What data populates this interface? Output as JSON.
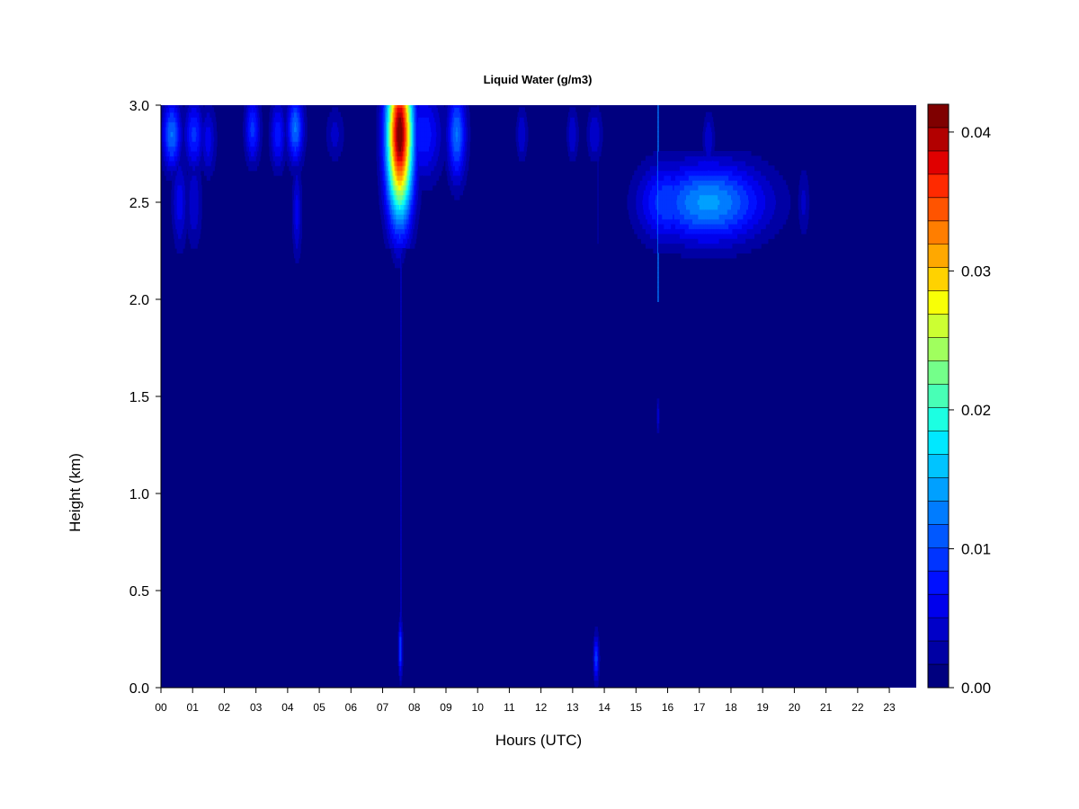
{
  "chart_data": {
    "type": "heatmap",
    "title": "Liquid Water (g/m3)",
    "xlabel": "Hours (UTC)",
    "ylabel": "Height (km)",
    "xlim": [
      0,
      23.85
    ],
    "ylim": [
      0,
      3.0
    ],
    "x_ticks": [
      "00",
      "01",
      "02",
      "03",
      "04",
      "05",
      "06",
      "07",
      "08",
      "09",
      "10",
      "11",
      "12",
      "13",
      "14",
      "15",
      "16",
      "17",
      "18",
      "19",
      "20",
      "21",
      "22",
      "23"
    ],
    "y_ticks": [
      "0.0",
      "0.5",
      "1.0",
      "1.5",
      "2.0",
      "2.5",
      "3.0"
    ],
    "colorbar": {
      "range": [
        0,
        0.042
      ],
      "tick_labels": [
        "0.00",
        "0.01",
        "0.02",
        "0.03",
        "0.04"
      ],
      "tick_values": [
        0,
        0.01,
        0.02,
        0.03,
        0.04
      ],
      "colors": [
        "#00007f",
        "#0000a4",
        "#0000c8",
        "#0000ec",
        "#0010ff",
        "#0034ff",
        "#0058ff",
        "#007cff",
        "#00a0ff",
        "#00c4ff",
        "#00e8ff",
        "#1cffe2",
        "#48ffb6",
        "#74ff8a",
        "#a0ff5e",
        "#ccff32",
        "#f8ff06",
        "#ffd200",
        "#ffa800",
        "#ff7e00",
        "#ff5400",
        "#ff2a00",
        "#e00000",
        "#b20000",
        "#7f0000"
      ]
    },
    "background_value": 0.0,
    "cloud_features": [
      {
        "x": 0.35,
        "y": 2.85,
        "width_h": 0.25,
        "depth_km": 0.15,
        "peak": 0.012
      },
      {
        "x": 0.6,
        "y": 2.5,
        "width_h": 0.2,
        "depth_km": 0.2,
        "peak": 0.006
      },
      {
        "x": 1.05,
        "y": 2.85,
        "width_h": 0.25,
        "depth_km": 0.15,
        "peak": 0.009
      },
      {
        "x": 1.5,
        "y": 2.82,
        "width_h": 0.2,
        "depth_km": 0.15,
        "peak": 0.006
      },
      {
        "x": 1.05,
        "y": 2.5,
        "width_h": 0.2,
        "depth_km": 0.2,
        "peak": 0.005
      },
      {
        "x": 2.9,
        "y": 2.88,
        "width_h": 0.2,
        "depth_km": 0.15,
        "peak": 0.009
      },
      {
        "x": 3.7,
        "y": 2.85,
        "width_h": 0.2,
        "depth_km": 0.15,
        "peak": 0.008
      },
      {
        "x": 4.25,
        "y": 2.88,
        "width_h": 0.22,
        "depth_km": 0.15,
        "peak": 0.012
      },
      {
        "x": 4.3,
        "y": 2.45,
        "width_h": 0.12,
        "depth_km": 0.2,
        "peak": 0.006
      },
      {
        "x": 5.5,
        "y": 2.85,
        "width_h": 0.25,
        "depth_km": 0.12,
        "peak": 0.004
      },
      {
        "x": 7.55,
        "y": 2.85,
        "width_h": 0.35,
        "depth_km": 0.35,
        "peak": 0.042
      },
      {
        "x": 7.5,
        "y": 2.5,
        "width_h": 0.2,
        "depth_km": 0.2,
        "peak": 0.014
      },
      {
        "x": 8.3,
        "y": 2.85,
        "width_h": 0.5,
        "depth_km": 0.2,
        "peak": 0.008
      },
      {
        "x": 9.35,
        "y": 2.85,
        "width_h": 0.25,
        "depth_km": 0.2,
        "peak": 0.012
      },
      {
        "x": 11.4,
        "y": 2.85,
        "width_h": 0.15,
        "depth_km": 0.12,
        "peak": 0.005
      },
      {
        "x": 13.0,
        "y": 2.85,
        "width_h": 0.15,
        "depth_km": 0.12,
        "peak": 0.005
      },
      {
        "x": 13.7,
        "y": 2.85,
        "width_h": 0.2,
        "depth_km": 0.12,
        "peak": 0.005
      },
      {
        "x": 17.3,
        "y": 2.82,
        "width_h": 0.15,
        "depth_km": 0.12,
        "peak": 0.005
      },
      {
        "x": 17.3,
        "y": 2.5,
        "width_h": 1.5,
        "depth_km": 0.17,
        "peak": 0.014
      },
      {
        "x": 16.0,
        "y": 2.5,
        "width_h": 0.8,
        "depth_km": 0.17,
        "peak": 0.01
      },
      {
        "x": 19.2,
        "y": 2.5,
        "width_h": 0.1,
        "depth_km": 0.15,
        "peak": 0.004
      },
      {
        "x": 20.3,
        "y": 2.5,
        "width_h": 0.15,
        "depth_km": 0.15,
        "peak": 0.004
      },
      {
        "x": 7.57,
        "y": 0.2,
        "width_h": 0.05,
        "depth_km": 0.12,
        "peak": 0.01
      },
      {
        "x": 13.75,
        "y": 0.15,
        "width_h": 0.07,
        "depth_km": 0.1,
        "peak": 0.01
      },
      {
        "x": 15.7,
        "y": 1.4,
        "width_h": 0.03,
        "depth_km": 0.08,
        "peak": 0.005
      }
    ],
    "vertical_streaks": [
      {
        "x": 7.57,
        "y_from": 0.05,
        "y_to": 3.0,
        "value": 0.004
      },
      {
        "x": 15.7,
        "y_from": 2.0,
        "y_to": 3.0,
        "value": 0.012
      },
      {
        "x": 13.8,
        "y_from": 2.3,
        "y_to": 3.0,
        "value": 0.003
      }
    ]
  }
}
